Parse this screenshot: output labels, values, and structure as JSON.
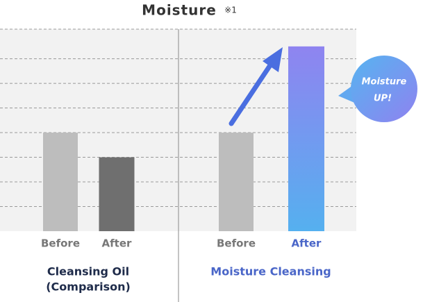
{
  "chart_data": {
    "type": "bar",
    "title": "Moisture",
    "title_note": "※1",
    "categories": [
      "Before",
      "After",
      "Before",
      "After"
    ],
    "values": [
      4,
      3,
      4,
      7.5
    ],
    "colors": [
      "#bdbdbd",
      "#6f6f6f",
      "#bdbdbd",
      "#8f84f0"
    ],
    "highlight": 3,
    "gradient_end": "#55b0ef",
    "groups": [
      {
        "label": [
          "Cleansing Oil",
          "(Comparison)"
        ]
      },
      {
        "label": [
          "Moisture Cleansing"
        ]
      }
    ],
    "annotation": [
      "Moisture",
      "UP!"
    ],
    "ylim": [
      0,
      8.2
    ],
    "yticks": [
      1,
      2,
      3,
      4,
      5,
      6,
      7,
      8.2
    ],
    "grid": true
  }
}
